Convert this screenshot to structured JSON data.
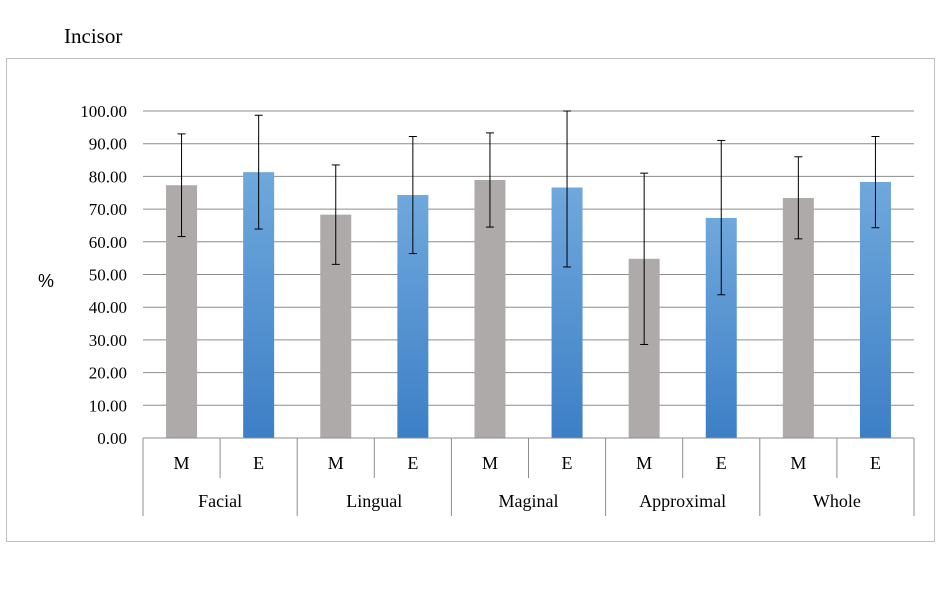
{
  "title": "Incisor",
  "colors": {
    "M": "#aeaaaa",
    "E_top": "#6fa8dc",
    "E_bottom": "#3d7fc6",
    "grid": "#8c8c8c",
    "error_bar": "#000000"
  },
  "chart_data": {
    "type": "bar",
    "title": "Incisor",
    "ylabel": "%",
    "xlabel": "",
    "ylim": [
      0,
      100
    ],
    "yticks": [
      "0.00",
      "10.00",
      "20.00",
      "30.00",
      "40.00",
      "50.00",
      "60.00",
      "70.00",
      "80.00",
      "90.00",
      "100.00"
    ],
    "grid": true,
    "groups": [
      "Facial",
      "Lingual",
      "Maginal",
      "Approximal",
      "Whole"
    ],
    "subcategories": [
      "M",
      "E"
    ],
    "series": [
      {
        "key": "M",
        "values": [
          77.3,
          68.3,
          78.9,
          54.8,
          73.4
        ],
        "err_low": [
          61.6,
          53.1,
          64.5,
          28.6,
          60.9
        ],
        "err_high": [
          93.0,
          83.5,
          93.3,
          81.0,
          86.0
        ]
      },
      {
        "key": "E",
        "values": [
          81.3,
          74.3,
          76.6,
          67.3,
          78.3
        ],
        "err_low": [
          63.9,
          56.4,
          52.3,
          43.8,
          64.3
        ],
        "err_high": [
          98.7,
          92.2,
          100.0,
          91.0,
          92.2
        ]
      }
    ]
  }
}
